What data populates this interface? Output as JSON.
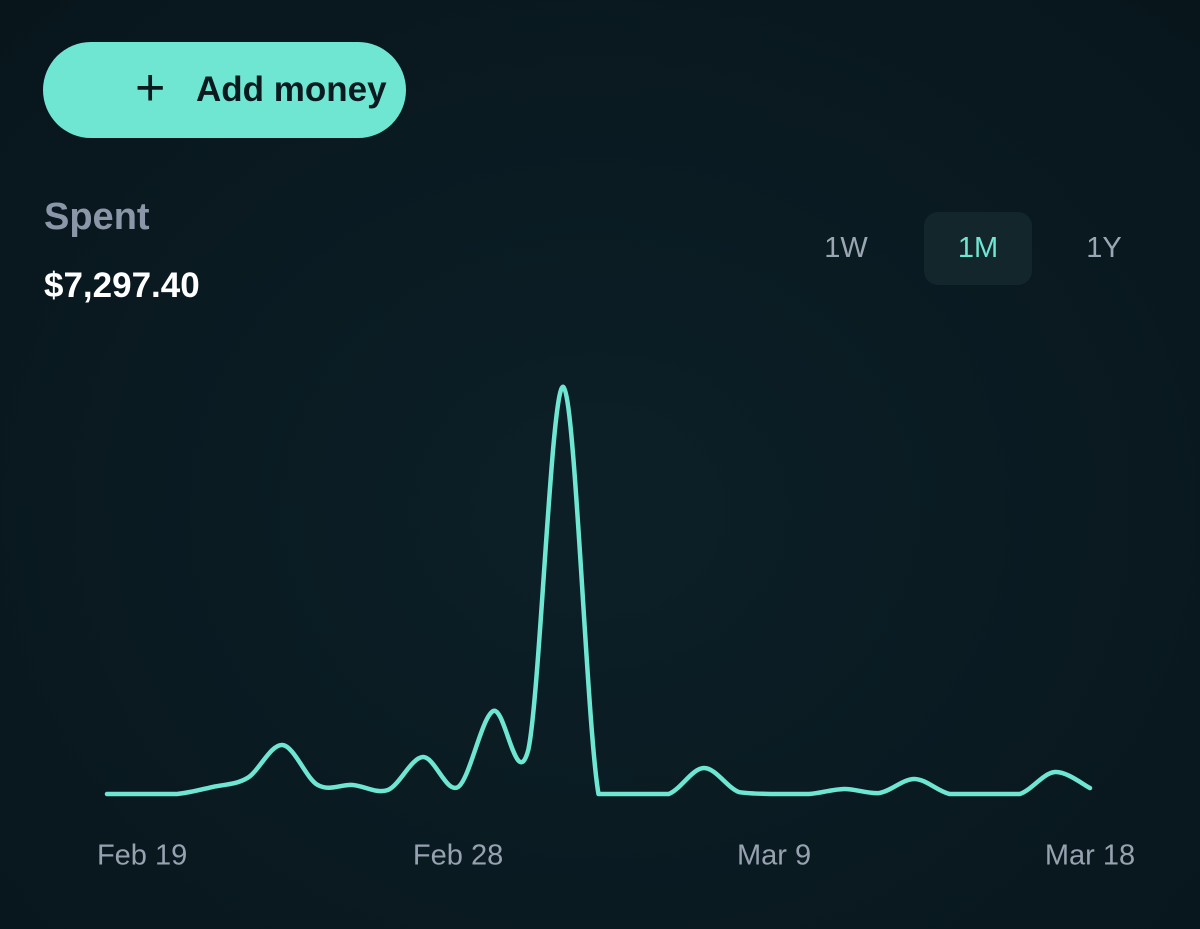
{
  "button": {
    "icon": "+",
    "label": "Add money"
  },
  "summary": {
    "label": "Spent",
    "amount": "$7,297.40"
  },
  "ranges": {
    "options": [
      "1W",
      "1M",
      "1Y"
    ],
    "selected_index": 1
  },
  "chart_data": {
    "type": "line",
    "color": "#6ee6d2",
    "categories": [
      null,
      "Feb 19",
      null,
      null,
      null,
      null,
      null,
      null,
      null,
      null,
      "Feb 28",
      null,
      null,
      null,
      null,
      null,
      null,
      null,
      null,
      "Mar 9",
      null,
      null,
      null,
      null,
      null,
      null,
      null,
      null,
      "Mar 18"
    ],
    "values": [
      0,
      0,
      0,
      68,
      156,
      477,
      88,
      88,
      39,
      360,
      68,
      808,
      429,
      3964,
      0,
      0,
      0,
      253,
      19,
      0,
      0,
      49,
      10,
      146,
      0,
      0,
      0,
      214,
      58
    ]
  }
}
